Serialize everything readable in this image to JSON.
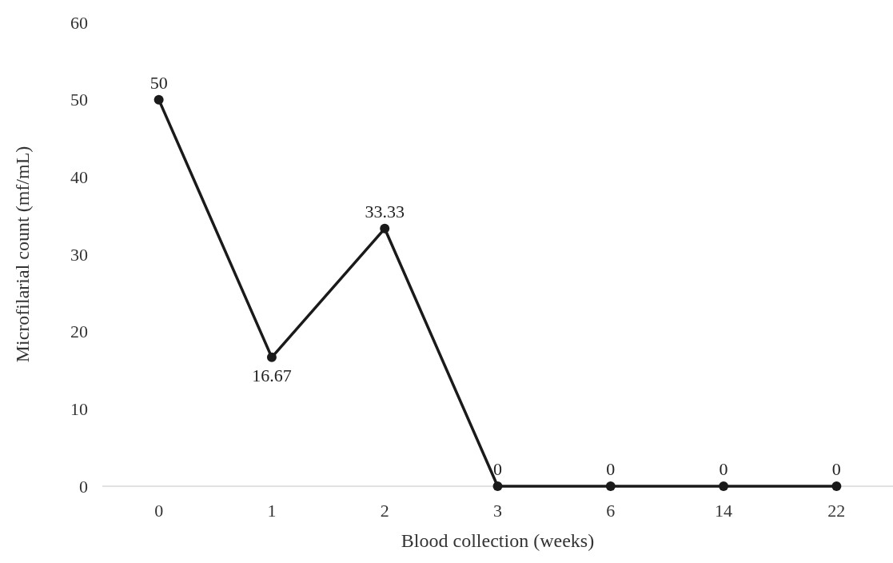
{
  "chart_data": {
    "type": "line",
    "xlabel": "Blood collection (weeks)",
    "ylabel": "Microfilarial count (mf/mL)",
    "categories": [
      "0",
      "1",
      "2",
      "3",
      "6",
      "14",
      "22"
    ],
    "series": [
      {
        "color": "#1a1a1a",
        "values": [
          50,
          16.67,
          33.33,
          0,
          0,
          0,
          0
        ]
      }
    ],
    "ylim": [
      0,
      60
    ],
    "yticks": [
      0,
      10,
      20,
      30,
      40,
      50,
      60
    ],
    "data_labels": true,
    "marker": "circle",
    "line_style": "solid",
    "grid": false
  }
}
